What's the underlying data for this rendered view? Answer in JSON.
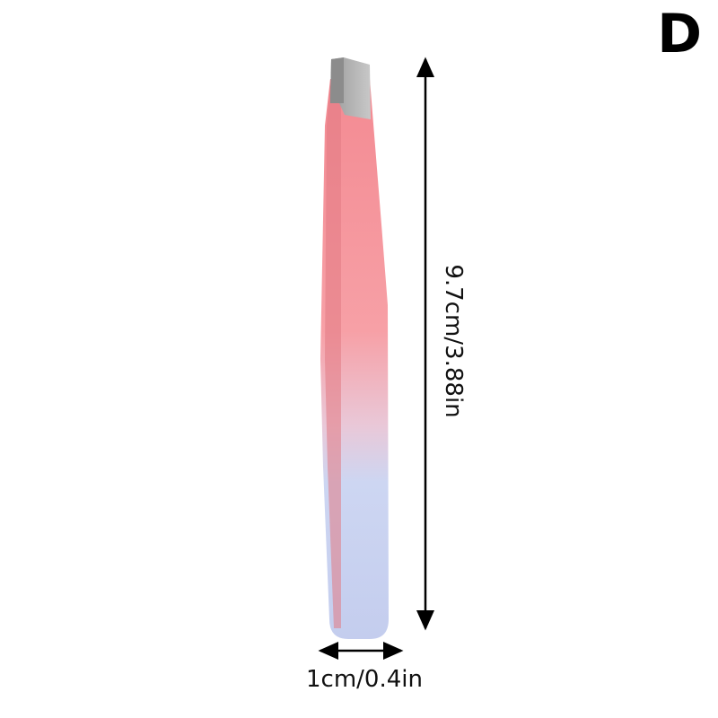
{
  "badge_letter": "D",
  "dimensions": {
    "length_label": "9.7cm/3.88in",
    "width_label": "1cm/0.4in"
  },
  "colors": {
    "top_pink": "#f38a92",
    "bottom_lavender": "#c9d3f1",
    "tip_metal": "#b8b8b8",
    "arrow": "#000000"
  }
}
